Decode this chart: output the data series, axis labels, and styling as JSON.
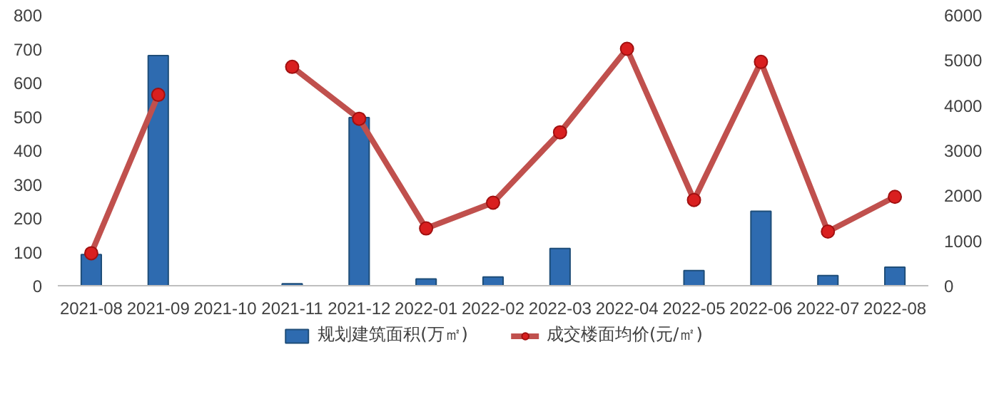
{
  "chart_data": {
    "type": "bar",
    "categories": [
      "2021-08",
      "2021-09",
      "2021-10",
      "2021-11",
      "2021-12",
      "2022-01",
      "2022-02",
      "2022-03",
      "2022-04",
      "2022-05",
      "2022-06",
      "2022-07",
      "2022-08"
    ],
    "series": [
      {
        "name": "规划建筑面积(万㎡)",
        "color": "#2e6bb0",
        "values": [
          92,
          680,
          null,
          6,
          497,
          20,
          26,
          110,
          null,
          45,
          220,
          30,
          55
        ]
      },
      {
        "name": "成交楼面均价(元/㎡)",
        "type": "line",
        "axis": "y2",
        "color": "#c0504d",
        "marker": "circle",
        "values": [
          720,
          4230,
          null,
          4850,
          3700,
          1270,
          1840,
          3400,
          5250,
          1900,
          4960,
          1200,
          1970
        ]
      }
    ],
    "ylim": [
      0,
      800
    ],
    "yticks": [
      0,
      100,
      200,
      300,
      400,
      500,
      600,
      700,
      800
    ],
    "y2lim": [
      0,
      6000
    ],
    "y2ticks": [
      0,
      1000,
      2000,
      3000,
      4000,
      5000,
      6000
    ],
    "grid": false,
    "legend": "bottom"
  }
}
